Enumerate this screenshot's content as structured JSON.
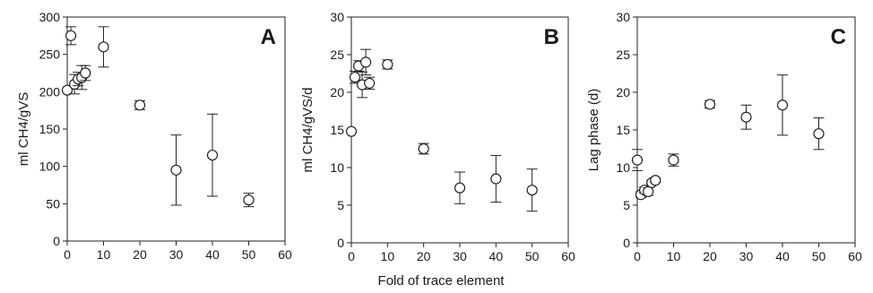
{
  "figure": {
    "shared_xlabel": "Fold of trace element"
  },
  "chart_data": [
    {
      "type": "scatter",
      "panel": "A",
      "title": "",
      "xlabel": "",
      "ylabel": "ml CH4/gVS",
      "xlim": [
        0,
        60
      ],
      "ylim": [
        0,
        300
      ],
      "xticks": [
        0,
        10,
        20,
        30,
        40,
        50,
        60
      ],
      "yticks": [
        0,
        50,
        100,
        150,
        200,
        250,
        300
      ],
      "grid": false,
      "points": [
        {
          "x": 0,
          "y": 202,
          "err": 0
        },
        {
          "x": 1,
          "y": 275,
          "err": 12
        },
        {
          "x": 2,
          "y": 210,
          "err": 13
        },
        {
          "x": 3,
          "y": 217,
          "err": 9
        },
        {
          "x": 4,
          "y": 219,
          "err": 16
        },
        {
          "x": 5,
          "y": 225,
          "err": 10
        },
        {
          "x": 10,
          "y": 260,
          "err": 27
        },
        {
          "x": 20,
          "y": 182,
          "err": 6
        },
        {
          "x": 30,
          "y": 95,
          "err": 47
        },
        {
          "x": 40,
          "y": 115,
          "err": 55
        },
        {
          "x": 50,
          "y": 55,
          "err": 9
        }
      ]
    },
    {
      "type": "scatter",
      "panel": "B",
      "title": "",
      "xlabel": "",
      "ylabel": "ml CH4/gVS/d",
      "xlim": [
        0,
        60
      ],
      "ylim": [
        0,
        30
      ],
      "xticks": [
        0,
        10,
        20,
        30,
        40,
        50,
        60
      ],
      "yticks": [
        0,
        5,
        10,
        15,
        20,
        25,
        30
      ],
      "grid": false,
      "points": [
        {
          "x": 0,
          "y": 14.8,
          "err": 0
        },
        {
          "x": 1,
          "y": 22.0,
          "err": 0.8
        },
        {
          "x": 2,
          "y": 23.5,
          "err": 0.7
        },
        {
          "x": 3,
          "y": 21.0,
          "err": 1.7
        },
        {
          "x": 4,
          "y": 24.0,
          "err": 1.7
        },
        {
          "x": 5,
          "y": 21.2,
          "err": 0.8
        },
        {
          "x": 10,
          "y": 23.7,
          "err": 0.6
        },
        {
          "x": 20,
          "y": 12.5,
          "err": 0.7
        },
        {
          "x": 30,
          "y": 7.3,
          "err": 2.1
        },
        {
          "x": 40,
          "y": 8.5,
          "err": 3.1
        },
        {
          "x": 50,
          "y": 7.0,
          "err": 2.8
        }
      ]
    },
    {
      "type": "scatter",
      "panel": "C",
      "title": "",
      "xlabel": "",
      "ylabel": "Lag phase (d)",
      "xlim": [
        0,
        60
      ],
      "ylim": [
        0,
        30
      ],
      "xticks": [
        0,
        10,
        20,
        30,
        40,
        50,
        60
      ],
      "yticks": [
        0,
        5,
        10,
        15,
        20,
        25,
        30
      ],
      "grid": false,
      "points": [
        {
          "x": 0,
          "y": 11.0,
          "err": 1.4
        },
        {
          "x": 1,
          "y": 6.4,
          "err": 0.4
        },
        {
          "x": 2,
          "y": 7.0,
          "err": 0.4
        },
        {
          "x": 3,
          "y": 6.8,
          "err": 0.5
        },
        {
          "x": 4,
          "y": 8.0,
          "err": 0.3
        },
        {
          "x": 5,
          "y": 8.3,
          "err": 0.3
        },
        {
          "x": 10,
          "y": 11.0,
          "err": 0.8
        },
        {
          "x": 20,
          "y": 18.4,
          "err": 0.5
        },
        {
          "x": 30,
          "y": 16.7,
          "err": 1.6
        },
        {
          "x": 40,
          "y": 18.3,
          "err": 4.0
        },
        {
          "x": 50,
          "y": 14.5,
          "err": 2.1
        }
      ]
    }
  ]
}
